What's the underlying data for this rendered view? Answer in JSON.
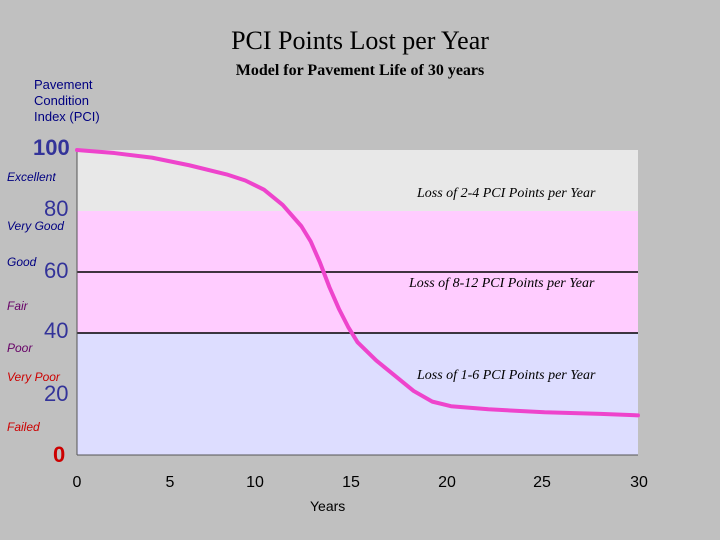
{
  "chart_data": {
    "type": "area",
    "title": "PCI Points Lost per Year",
    "subtitle": "Model for Pavement Life of 30 years",
    "ylabel": "Pavement\nCondition\nIndex (PCI)",
    "xlabel": "Years",
    "xlim": [
      0,
      30
    ],
    "ylim": [
      0,
      100
    ],
    "x_ticks": [
      "0",
      "5",
      "10",
      "15",
      "20",
      "25",
      "30"
    ],
    "y_ticks": [
      "100",
      "80",
      "60",
      "40",
      "20",
      "0"
    ],
    "bands": [
      {
        "from": 80,
        "to": 100,
        "color": "#e8e8e8"
      },
      {
        "from": 40,
        "to": 80,
        "color": "#ffccff"
      },
      {
        "from": 0,
        "to": 40,
        "color": "#ddddff"
      }
    ],
    "band_lines": [
      60,
      40
    ],
    "series": [
      {
        "color": "#ee44cc",
        "x": [
          0,
          2,
          4,
          6,
          8,
          9,
          10,
          11,
          12,
          12.5,
          13,
          13.5,
          14,
          14.5,
          15,
          16,
          17,
          18,
          19,
          20,
          22,
          25,
          28,
          30
        ],
        "y": [
          100,
          99,
          97.5,
          95,
          92,
          90,
          87,
          82,
          75,
          70,
          63,
          55,
          48,
          42,
          37,
          31,
          26,
          21,
          17.5,
          16,
          15,
          14,
          13.5,
          13
        ]
      }
    ],
    "conditions": [
      {
        "label": "Excellent",
        "color": "#000080"
      },
      {
        "label": "Very Good",
        "color": "#000080"
      },
      {
        "label": "Good",
        "color": "#000080"
      },
      {
        "label": "Fair",
        "color": "#660066"
      },
      {
        "label": "Poor",
        "color": "#660066"
      },
      {
        "label": "Very Poor",
        "color": "#cc0000"
      },
      {
        "label": "Failed",
        "color": "#cc0000"
      }
    ],
    "annotations": [
      "Loss of 2-4 PCI Points per Year",
      "Loss of 8-12 PCI Points per Year",
      "Loss of 1-6 PCI Points per Year"
    ]
  }
}
